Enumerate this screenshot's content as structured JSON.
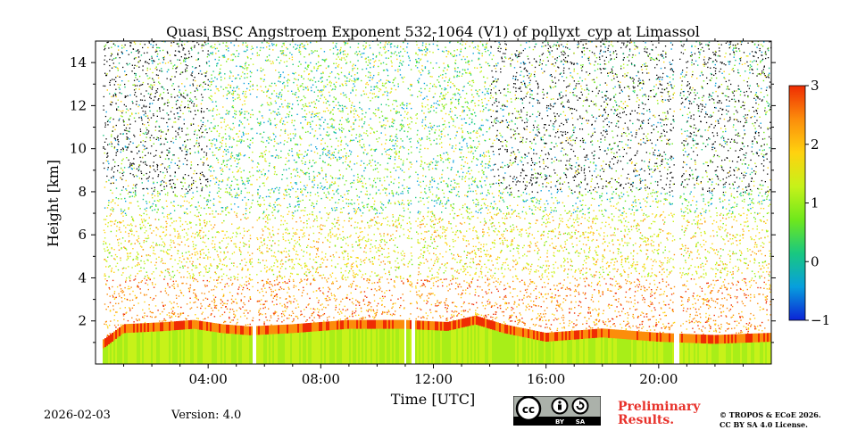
{
  "chart_data": {
    "type": "heatmap",
    "title": "Quasi BSC Angstroem Exponent 532-1064 (V1) of pollyxt_cyp at Limassol",
    "xlabel": "Time [UTC]",
    "ylabel": "Height [km]",
    "xlim_hours": [
      0,
      24
    ],
    "ylim_km": [
      0,
      15
    ],
    "x_ticks": [
      {
        "hour": 4,
        "label": "04:00"
      },
      {
        "hour": 8,
        "label": "08:00"
      },
      {
        "hour": 12,
        "label": "12:00"
      },
      {
        "hour": 16,
        "label": "16:00"
      },
      {
        "hour": 20,
        "label": "20:00"
      }
    ],
    "y_ticks": [
      {
        "km": 2,
        "label": "2"
      },
      {
        "km": 4,
        "label": "4"
      },
      {
        "km": 6,
        "label": "6"
      },
      {
        "km": 8,
        "label": "8"
      },
      {
        "km": 10,
        "label": "10"
      },
      {
        "km": 12,
        "label": "12"
      },
      {
        "km": 14,
        "label": "14"
      }
    ],
    "colorbar": {
      "range": [
        -1,
        3
      ],
      "ticks": [
        {
          "value": 3,
          "label": "3"
        },
        {
          "value": 2,
          "label": "2"
        },
        {
          "value": 1,
          "label": "1"
        },
        {
          "value": 0,
          "label": "0"
        },
        {
          "value": -1,
          "label": "−1"
        }
      ],
      "colormap": [
        "#0c23d6",
        "#079fdd",
        "#19c880",
        "#6fe81c",
        "#c7f219",
        "#ffd20f",
        "#fc8d0b",
        "#ef2c03"
      ]
    },
    "boundary_layer_top_km": [
      {
        "hour": 0.3,
        "km": 0.9
      },
      {
        "hour": 1.0,
        "km": 1.6
      },
      {
        "hour": 2.5,
        "km": 1.7
      },
      {
        "hour": 3.5,
        "km": 1.8
      },
      {
        "hour": 4.5,
        "km": 1.6
      },
      {
        "hour": 5.5,
        "km": 1.5
      },
      {
        "hour": 7.0,
        "km": 1.6
      },
      {
        "hour": 9.0,
        "km": 1.8
      },
      {
        "hour": 11.0,
        "km": 1.8
      },
      {
        "hour": 12.5,
        "km": 1.7
      },
      {
        "hour": 13.5,
        "km": 2.0
      },
      {
        "hour": 14.5,
        "km": 1.6
      },
      {
        "hour": 16.0,
        "km": 1.2
      },
      {
        "hour": 18.0,
        "km": 1.4
      },
      {
        "hour": 20.0,
        "km": 1.2
      },
      {
        "hour": 22.0,
        "km": 1.1
      },
      {
        "hour": 24.0,
        "km": 1.2
      }
    ],
    "data_gaps_hours": [
      [
        5.55,
        5.72
      ],
      [
        10.95,
        11.05
      ],
      [
        11.25,
        11.35
      ],
      [
        20.55,
        20.72
      ]
    ]
  },
  "footer": {
    "date": "2026-02-03",
    "version": "Version: 4.0",
    "preliminary_line1": "Preliminary",
    "preliminary_line2": "Results.",
    "copyright_line1": "© TROPOS & ECoE 2026.",
    "copyright_line2": "CC BY SA 4.0 License."
  },
  "license_badge": {
    "cc": "cc",
    "by": "BY",
    "sa": "SA"
  },
  "colors": {
    "background": "#ffffff",
    "preliminary": "#e8322b",
    "badge_bg": "#abb1aa",
    "badge_strip": "#000000"
  }
}
